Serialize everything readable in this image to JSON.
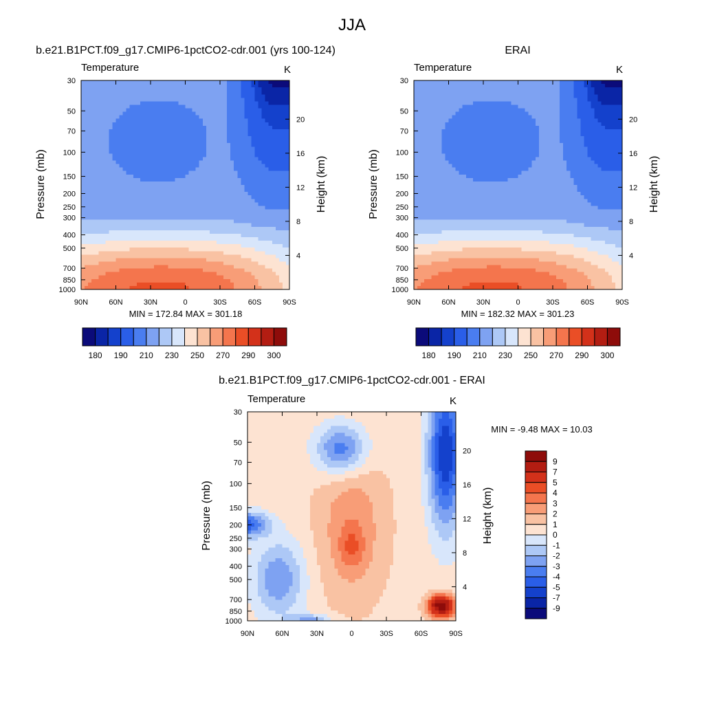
{
  "figure": {
    "title": "JJA"
  },
  "palette": {
    "full_field": [
      "#0b0b7a",
      "#0a25a6",
      "#1441cc",
      "#2a5ee8",
      "#4a7df0",
      "#7ea2f2",
      "#adc8f6",
      "#d8e6fb",
      "#fde3d2",
      "#f9c2a3",
      "#f89d77",
      "#f4754d",
      "#ea4e26",
      "#d3311a",
      "#b31d12",
      "#8e0c0a"
    ],
    "difference": [
      "#0b0b7a",
      "#0a25a6",
      "#1441cc",
      "#2a5ee8",
      "#4a7df0",
      "#7ea2f2",
      "#adc8f6",
      "#d8e6fb",
      "#fde3d2",
      "#f9c2a3",
      "#f89d77",
      "#f4754d",
      "#ea4e26",
      "#d3311a",
      "#b31d12",
      "#8e0c0a"
    ]
  },
  "chart_data": [
    {
      "type": "heatmap",
      "id": "model",
      "title": "b.e21.B1PCT.f09_g17.CMIP6-1pctCO2-cdr.001 (yrs 100-124)",
      "left_label": "Temperature",
      "units": "K",
      "ylabel": "Pressure (mb)",
      "ylabel_right": "Height (km)",
      "x_ticks": [
        "90N",
        "60N",
        "30N",
        "0",
        "30S",
        "60S",
        "90S"
      ],
      "y_ticks": [
        "30",
        "50",
        "70",
        "100",
        "150",
        "200",
        "250",
        "300",
        "400",
        "500",
        "700",
        "850",
        "1000"
      ],
      "y_right_ticks": [
        "20",
        "16",
        "12",
        "8",
        "4"
      ],
      "stats": "MIN = 172.84  MAX = 301.18",
      "colorbar_labels": [
        "180",
        "190",
        "210",
        "230",
        "250",
        "270",
        "290",
        "300"
      ]
    },
    {
      "type": "heatmap",
      "id": "obs",
      "title": "ERAI",
      "left_label": "Temperature",
      "units": "K",
      "ylabel": "Pressure (mb)",
      "ylabel_right": "Height (km)",
      "x_ticks": [
        "90N",
        "60N",
        "30N",
        "0",
        "30S",
        "60S",
        "90S"
      ],
      "y_ticks": [
        "30",
        "50",
        "70",
        "100",
        "150",
        "200",
        "250",
        "300",
        "400",
        "500",
        "700",
        "850",
        "1000"
      ],
      "y_right_ticks": [
        "20",
        "16",
        "12",
        "8",
        "4"
      ],
      "stats": "MIN = 182.32  MAX = 301.23",
      "colorbar_labels": [
        "180",
        "190",
        "210",
        "230",
        "250",
        "270",
        "290",
        "300"
      ]
    },
    {
      "type": "heatmap",
      "id": "diff",
      "title": "b.e21.B1PCT.f09_g17.CMIP6-1pctCO2-cdr.001 - ERAI",
      "left_label": "Temperature",
      "units": "K",
      "ylabel": "Pressure (mb)",
      "ylabel_right": "Height (km)",
      "x_ticks": [
        "90N",
        "60N",
        "30N",
        "0",
        "30S",
        "60S",
        "90S"
      ],
      "y_ticks": [
        "30",
        "50",
        "70",
        "100",
        "150",
        "200",
        "250",
        "300",
        "400",
        "500",
        "700",
        "850",
        "1000"
      ],
      "y_right_ticks": [
        "20",
        "16",
        "12",
        "8",
        "4"
      ],
      "stats": "MIN =  -9.48  MAX =  10.03",
      "colorbar_labels": [
        "9",
        "7",
        "5",
        "4",
        "3",
        "2",
        "1",
        "0",
        "-1",
        "-2",
        "-3",
        "-4",
        "-5",
        "-7",
        "-9"
      ]
    }
  ]
}
